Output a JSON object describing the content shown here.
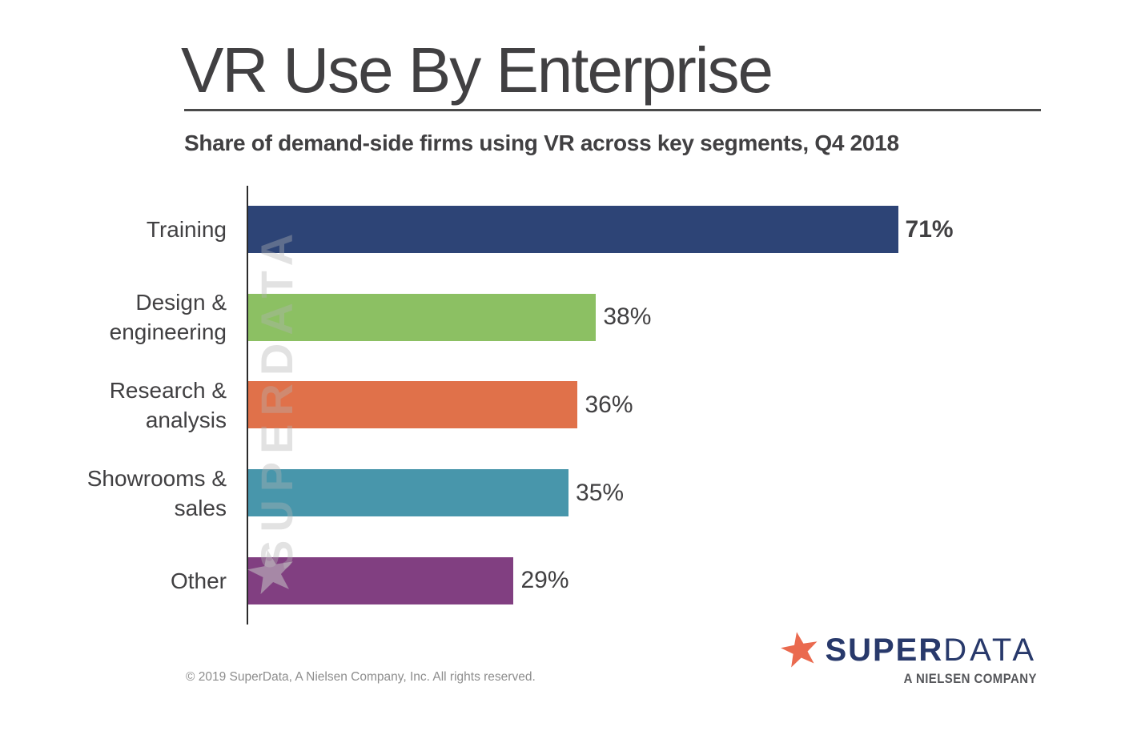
{
  "title": "VR Use By Enterprise",
  "subtitle": "Share of demand-side firms using VR across key segments, Q4 2018",
  "watermark": {
    "text": "SUPERDATA",
    "icon": "star-icon"
  },
  "chart_data": {
    "type": "bar",
    "orientation": "horizontal",
    "title": "VR Use By Enterprise",
    "subtitle": "Share of demand-side firms using VR across key segments, Q4 2018",
    "categories": [
      "Training",
      "Design & engineering",
      "Research & analysis",
      "Showrooms & sales",
      "Other"
    ],
    "category_lines": [
      [
        "Training"
      ],
      [
        "Design &",
        "engineering"
      ],
      [
        "Research &",
        "analysis"
      ],
      [
        "Showrooms &",
        "sales"
      ],
      [
        "Other"
      ]
    ],
    "values": [
      71,
      38,
      36,
      35,
      29
    ],
    "value_labels": [
      "71%",
      "38%",
      "36%",
      "35%",
      "29%"
    ],
    "value_label_bold": [
      true,
      false,
      false,
      false,
      false
    ],
    "bar_colors": [
      "#2D4476",
      "#8CC063",
      "#E0714A",
      "#4896AB",
      "#813F81"
    ],
    "xlim": [
      0,
      100
    ],
    "grid": false,
    "legend": "none",
    "value_label_position": "outside-end",
    "axis_color": "#2b2b2b"
  },
  "footer": {
    "copyright": "© 2019 SuperData, A Nielsen Company, Inc. All rights reserved."
  },
  "logo": {
    "brand_bold": "SUPER",
    "brand_light": "DATA",
    "tagline": "A NIELSEN COMPANY",
    "star_color": "#EA6A4F",
    "text_color": "#28396B"
  }
}
